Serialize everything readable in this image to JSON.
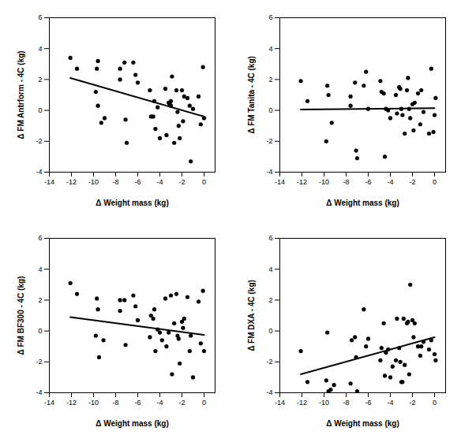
{
  "chart_data": [
    {
      "type": "scatter",
      "x_label": "Δ Weight mass (kg)",
      "y_label": "Δ FM Antrform - 4C (kg)",
      "xlim": [
        -14,
        1
      ],
      "ylim": [
        -4,
        6
      ],
      "xticks": [
        -14,
        -12,
        -10,
        -8,
        -6,
        -4,
        -2,
        0
      ],
      "yticks": [
        -4,
        -2,
        0,
        2,
        4,
        6
      ],
      "color": "#000000",
      "series": [
        {
          "type": "scatter",
          "x": [
            -12.1,
            -11.5,
            -9.8,
            -9.7,
            -9.6,
            -9.6,
            -9.3,
            -9,
            -7.6,
            -7.6,
            -7.2,
            -7.1,
            -7,
            -6.4,
            -6.2,
            -6,
            -4.9,
            -4.8,
            -4.6,
            -4.5,
            -4.4,
            -4.2,
            -4,
            -3.5,
            -3.4,
            -3.2,
            -3.1,
            -3.0,
            -3.0,
            -2.9,
            -2.7,
            -2.5,
            -2.4,
            -2.3,
            -2.2,
            -2,
            -1.9,
            -1.8,
            -1.5,
            -1.3,
            -1.2,
            -1,
            -0.5,
            -0.3,
            -0.1,
            0
          ],
          "values": [
            3.4,
            2.7,
            1.2,
            2.7,
            3.2,
            0.3,
            -0.8,
            -0.5,
            2.7,
            2.0,
            3.1,
            -0.6,
            -2.1,
            3.1,
            2.3,
            1.8,
            1.3,
            -0.4,
            -0.4,
            0.6,
            -1.2,
            0.2,
            -1.8,
            1.4,
            -1.6,
            0.5,
            0.4,
            0.6,
            0.3,
            2.2,
            -2.1,
            1.3,
            -0.1,
            -1.0,
            -1.8,
            1.3,
            -0.7,
            0.9,
            0.8,
            0.3,
            -3.3,
            0.1,
            0.9,
            -0.9,
            2.8,
            -0.5
          ]
        },
        {
          "type": "line",
          "x": [
            -12.1,
            0
          ],
          "values": [
            2.1,
            -0.4
          ]
        }
      ]
    },
    {
      "type": "scatter",
      "x_label": "Δ Weight mass (kg)",
      "y_label": "Δ FM Tanita - 4C (kg)",
      "xlim": [
        -14,
        1
      ],
      "ylim": [
        -4,
        6
      ],
      "xticks": [
        -14,
        -12,
        -10,
        -8,
        -6,
        -4,
        -2,
        0
      ],
      "yticks": [
        -4,
        -2,
        0,
        2,
        4,
        6
      ],
      "color": "#000000",
      "series": [
        {
          "type": "scatter",
          "x": [
            -12.1,
            -11.5,
            -9.8,
            -9.7,
            -9.6,
            -9.3,
            -7.6,
            -7.6,
            -7.2,
            -7.1,
            -7,
            -6.4,
            -6.2,
            -6,
            -4.9,
            -4.8,
            -4.6,
            -4.5,
            -4.4,
            -4.2,
            -4,
            -3.5,
            -3.4,
            -3.2,
            -3.1,
            -3,
            -2.9,
            -2.7,
            -2.5,
            -2.4,
            -2.3,
            -2.2,
            -2,
            -1.9,
            -1.8,
            -1.5,
            -1.3,
            -1.2,
            -1,
            -0.5,
            -0.3,
            -0.1,
            0,
            0.1
          ],
          "values": [
            1.9,
            0.6,
            -2,
            1.6,
            1.0,
            -0.8,
            0.9,
            0.3,
            1.8,
            -2.6,
            -3.1,
            1.6,
            2.5,
            0.1,
            1.9,
            1.2,
            1.1,
            -3.0,
            0.1,
            0.0,
            -0.5,
            1.0,
            -0.2,
            1.5,
            1.4,
            0.1,
            -0.3,
            -1.5,
            1.3,
            2.1,
            0.1,
            -0.5,
            0.4,
            -1.3,
            0.5,
            1.1,
            -0.9,
            1.3,
            -0.1,
            -1.5,
            2.7,
            -1.4,
            -0.3,
            0.8
          ]
        },
        {
          "type": "line",
          "x": [
            -12.1,
            0
          ],
          "values": [
            0.05,
            0.15
          ]
        }
      ]
    },
    {
      "type": "scatter",
      "x_label": "Δ Weight mass (kg)",
      "y_label": "Δ FM BF300 - 4C (kg)",
      "xlim": [
        -14,
        1
      ],
      "ylim": [
        -4,
        6
      ],
      "xticks": [
        -14,
        -12,
        -10,
        -8,
        -6,
        -4,
        -2,
        0
      ],
      "yticks": [
        -4,
        -2,
        0,
        2,
        4,
        6
      ],
      "color": "#000000",
      "series": [
        {
          "type": "scatter",
          "x": [
            -12.1,
            -11.5,
            -9.8,
            -9.7,
            -9.6,
            -9.5,
            -9.1,
            -7.6,
            -7.6,
            -7.2,
            -7.1,
            -6.4,
            -6.2,
            -6,
            -4.9,
            -4.8,
            -4.6,
            -4.5,
            -4.4,
            -4.2,
            -4,
            -3.8,
            -3.5,
            -3.4,
            -3.2,
            -3.0,
            -2.9,
            -2.7,
            -2.5,
            -2.4,
            -2.3,
            -2.2,
            -2,
            -1.9,
            -1.8,
            -1.5,
            -1.3,
            -1.2,
            -1,
            -0.5,
            -0.3,
            -0.1,
            0
          ],
          "values": [
            3.1,
            2.4,
            -0.3,
            2.1,
            1.4,
            -1.7,
            -0.6,
            2.0,
            1.3,
            2.0,
            -0.9,
            2.3,
            1.6,
            0.7,
            -0.4,
            1.0,
            0.8,
            1.4,
            -1.3,
            0.1,
            -0.1,
            -0.6,
            2.1,
            -1.0,
            -0.1,
            2.3,
            -2.8,
            0.5,
            2.4,
            -0.3,
            -0.5,
            -2.1,
            0.6,
            0.2,
            0.8,
            2.2,
            -1.3,
            -0.3,
            -3.0,
            1.9,
            -0.8,
            2.6,
            -1.3
          ]
        },
        {
          "type": "line",
          "x": [
            -12.1,
            0
          ],
          "values": [
            0.9,
            -0.25
          ]
        }
      ]
    },
    {
      "type": "scatter",
      "x_label": "Δ Weight mass (kg)",
      "y_label": "Δ FM DXA - 4C (kg)",
      "xlim": [
        -14,
        1
      ],
      "ylim": [
        -4,
        6
      ],
      "xticks": [
        -14,
        -12,
        -10,
        -8,
        -6,
        -4,
        -2,
        0
      ],
      "yticks": [
        -4,
        -2,
        0,
        2,
        4,
        6
      ],
      "color": "#000000",
      "series": [
        {
          "type": "scatter",
          "x": [
            -12.1,
            -11.5,
            -9.8,
            -9.7,
            -9.6,
            -9.4,
            -9.1,
            -7.6,
            -7.5,
            -7.2,
            -7.1,
            -7,
            -6.4,
            -6.2,
            -6,
            -4.9,
            -4.8,
            -4.6,
            -4.5,
            -4.4,
            -4.2,
            -4,
            -3.8,
            -3.5,
            -3.4,
            -3.2,
            -3.1,
            -3,
            -2.9,
            -2.8,
            -2.7,
            -2.5,
            -2.4,
            -2.3,
            -2.2,
            -2,
            -1.9,
            -1.8,
            -1.5,
            -1.3,
            -1.2,
            -1,
            -0.5,
            -0.3,
            0,
            0.1
          ],
          "values": [
            -1.3,
            -3.3,
            -3.2,
            -0.1,
            -3.9,
            -3.8,
            -3.5,
            -3.4,
            -0.6,
            -0.4,
            -1.7,
            -3.9,
            1.4,
            -1.0,
            -0.5,
            -1.9,
            -1.1,
            0.5,
            -2.9,
            -1.4,
            -1.2,
            -3.0,
            -2.3,
            -1.9,
            0.8,
            -1.1,
            -2.0,
            -3.3,
            -3.3,
            0.8,
            -2.2,
            0.5,
            0.6,
            -2.8,
            3.0,
            0.7,
            -0.4,
            0.5,
            -1.0,
            -1.6,
            -1.0,
            -0.7,
            -1.2,
            -0.6,
            -1.5,
            -1.9
          ]
        },
        {
          "type": "line",
          "x": [
            -12.1,
            0
          ],
          "values": [
            -2.8,
            -0.4
          ]
        }
      ]
    }
  ]
}
